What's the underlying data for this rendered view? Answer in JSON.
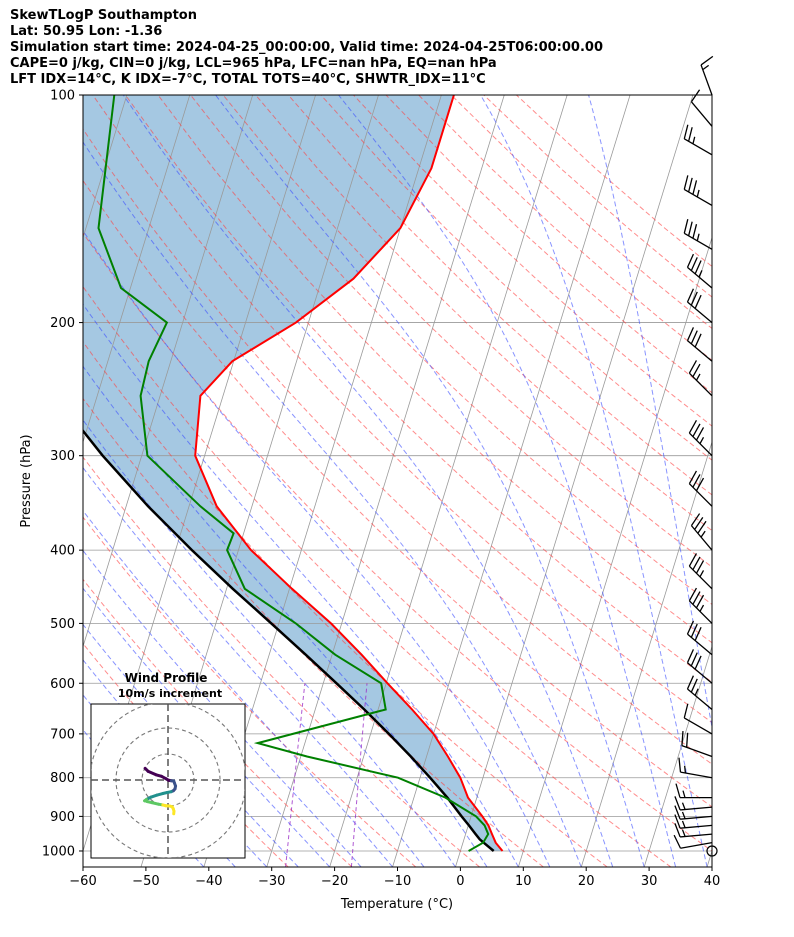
{
  "title_lines": [
    "SkewTLogP Southampton",
    "Lat: 50.95   Lon: -1.36",
    "Simulation start time: 2024-04-25_00:00:00, Valid time: 2024-04-25T06:00:00.00",
    "CAPE=0 j/kg, CIN=0 j/kg, LCL=965 hPa, LFC=nan hPa, EQ=nan hPa",
    "LFT IDX=14°C, K IDX=-7°C, TOTAL TOTS=40°C, SHWTR_IDX=11°C"
  ],
  "colors": {
    "temperature": "#ff0000",
    "dewpoint": "#008000",
    "parcel": "#000000",
    "cape_fill": "#7fb1d6",
    "dry_adiabats": "#ff4040",
    "moist_adiabats": "#3a4cff",
    "isotherms": "#9a9a9a",
    "mixing_ratio": "#9b30c8",
    "barbs": "#000000"
  },
  "chart_data": {
    "type": "skewt",
    "xlabel": "Temperature (°C)",
    "ylabel": "Pressure (hPa)",
    "xlim": [
      -60,
      40
    ],
    "ylim": [
      1050,
      100
    ],
    "y_scale": "log",
    "xticks": [
      "−60",
      "−50",
      "−40",
      "−30",
      "−20",
      "−10",
      "0",
      "10",
      "20",
      "30",
      "40"
    ],
    "yticks": [
      "100",
      "200",
      "300",
      "400",
      "500",
      "600",
      "700",
      "800",
      "900",
      "1000"
    ],
    "grid": true,
    "temperature_profile": {
      "pressure": [
        1000,
        975,
        950,
        925,
        900,
        850,
        800,
        750,
        700,
        650,
        600,
        550,
        500,
        450,
        400,
        350,
        300,
        250,
        225,
        200,
        175,
        150,
        125,
        100
      ],
      "temperature": [
        6.7,
        5.2,
        4.2,
        3.2,
        1.8,
        -1.4,
        -3.6,
        -6.6,
        -10.0,
        -14.6,
        -19.8,
        -25.3,
        -31.7,
        -39.6,
        -48.0,
        -55.6,
        -61.5,
        -63.6,
        -60.2,
        -52.0,
        -45.0,
        -40.0,
        -38.0,
        -38.0
      ]
    },
    "dewpoint_profile": {
      "pressure": [
        1000,
        975,
        950,
        925,
        900,
        850,
        800,
        750,
        720,
        650,
        600,
        550,
        500,
        450,
        400,
        380,
        350,
        300,
        250,
        225,
        200,
        180,
        150,
        100
      ],
      "dewpoint": [
        1.3,
        3.2,
        3.6,
        2.6,
        0.8,
        -5.0,
        -13.5,
        -29.0,
        -37.5,
        -18.8,
        -20.8,
        -29.5,
        -37.3,
        -47.1,
        -51.8,
        -51.6,
        -58.2,
        -69.1,
        -73.1,
        -73.5,
        -72.5,
        -81.5,
        -88.0,
        -92.0
      ]
    },
    "parcel_profile": {
      "pressure": [
        1000,
        975,
        965,
        950,
        925,
        900,
        850,
        800,
        750,
        700,
        650,
        600,
        550,
        500,
        450,
        400,
        350,
        300,
        250,
        200,
        150,
        100
      ],
      "temperature": [
        5.3,
        3.3,
        2.5,
        1.6,
        0.1,
        -1.5,
        -4.7,
        -8.4,
        -12.5,
        -17.1,
        -22.2,
        -27.9,
        -34.2,
        -41.2,
        -49.0,
        -57.4,
        -66.5,
        -76.2,
        -86.7,
        -98.6,
        -112.0,
        -128.0
      ]
    },
    "wind_barbs": {
      "pressure": [
        1000,
        975,
        950,
        925,
        900,
        875,
        850,
        800,
        750,
        700,
        650,
        600,
        550,
        500,
        450,
        400,
        350,
        300,
        250,
        225,
        200,
        180,
        160,
        140,
        120,
        110,
        100
      ],
      "speed_kt": [
        3,
        10,
        15,
        15,
        15,
        15,
        15,
        15,
        20,
        10,
        25,
        30,
        30,
        35,
        35,
        35,
        30,
        35,
        25,
        30,
        30,
        35,
        35,
        35,
        25,
        10,
        15
      ],
      "direction_deg": [
        240,
        260,
        265,
        265,
        265,
        265,
        270,
        280,
        290,
        300,
        310,
        310,
        310,
        315,
        315,
        320,
        315,
        315,
        315,
        310,
        310,
        310,
        300,
        300,
        300,
        320,
        340
      ]
    },
    "hodograph": {
      "title": "Wind Profile",
      "subtitle": "10m/s increment",
      "rings_ms": [
        10,
        20,
        30
      ],
      "u": [
        -8.8,
        -7.6,
        -4.6,
        -2.5,
        -0.8,
        0.2,
        1.3,
        2.2,
        2.5,
        2.9,
        2.7,
        2.1,
        1.2,
        -0.3,
        -2.0,
        -4.2,
        -6.6,
        -8.3,
        -9.0,
        -8.4,
        -8.0,
        -6.2,
        -3.7,
        -2.0,
        -0.8,
        0.6,
        1.6,
        2.0,
        2.3,
        2.2
      ],
      "v": [
        4.5,
        3.3,
        2.0,
        1.4,
        0.5,
        -0.1,
        -0.3,
        -0.4,
        -1.2,
        -2.3,
        -3.4,
        -4.1,
        -4.5,
        -4.8,
        -5.2,
        -5.8,
        -6.6,
        -7.5,
        -8.0,
        -8.1,
        -8.3,
        -8.7,
        -9.3,
        -9.6,
        -9.9,
        -10.0,
        -10.3,
        -11.0,
        -12.0,
        -13.0
      ],
      "colormap": [
        "#440154",
        "#3b528b",
        "#21908d",
        "#5dc863",
        "#fde725"
      ]
    }
  }
}
